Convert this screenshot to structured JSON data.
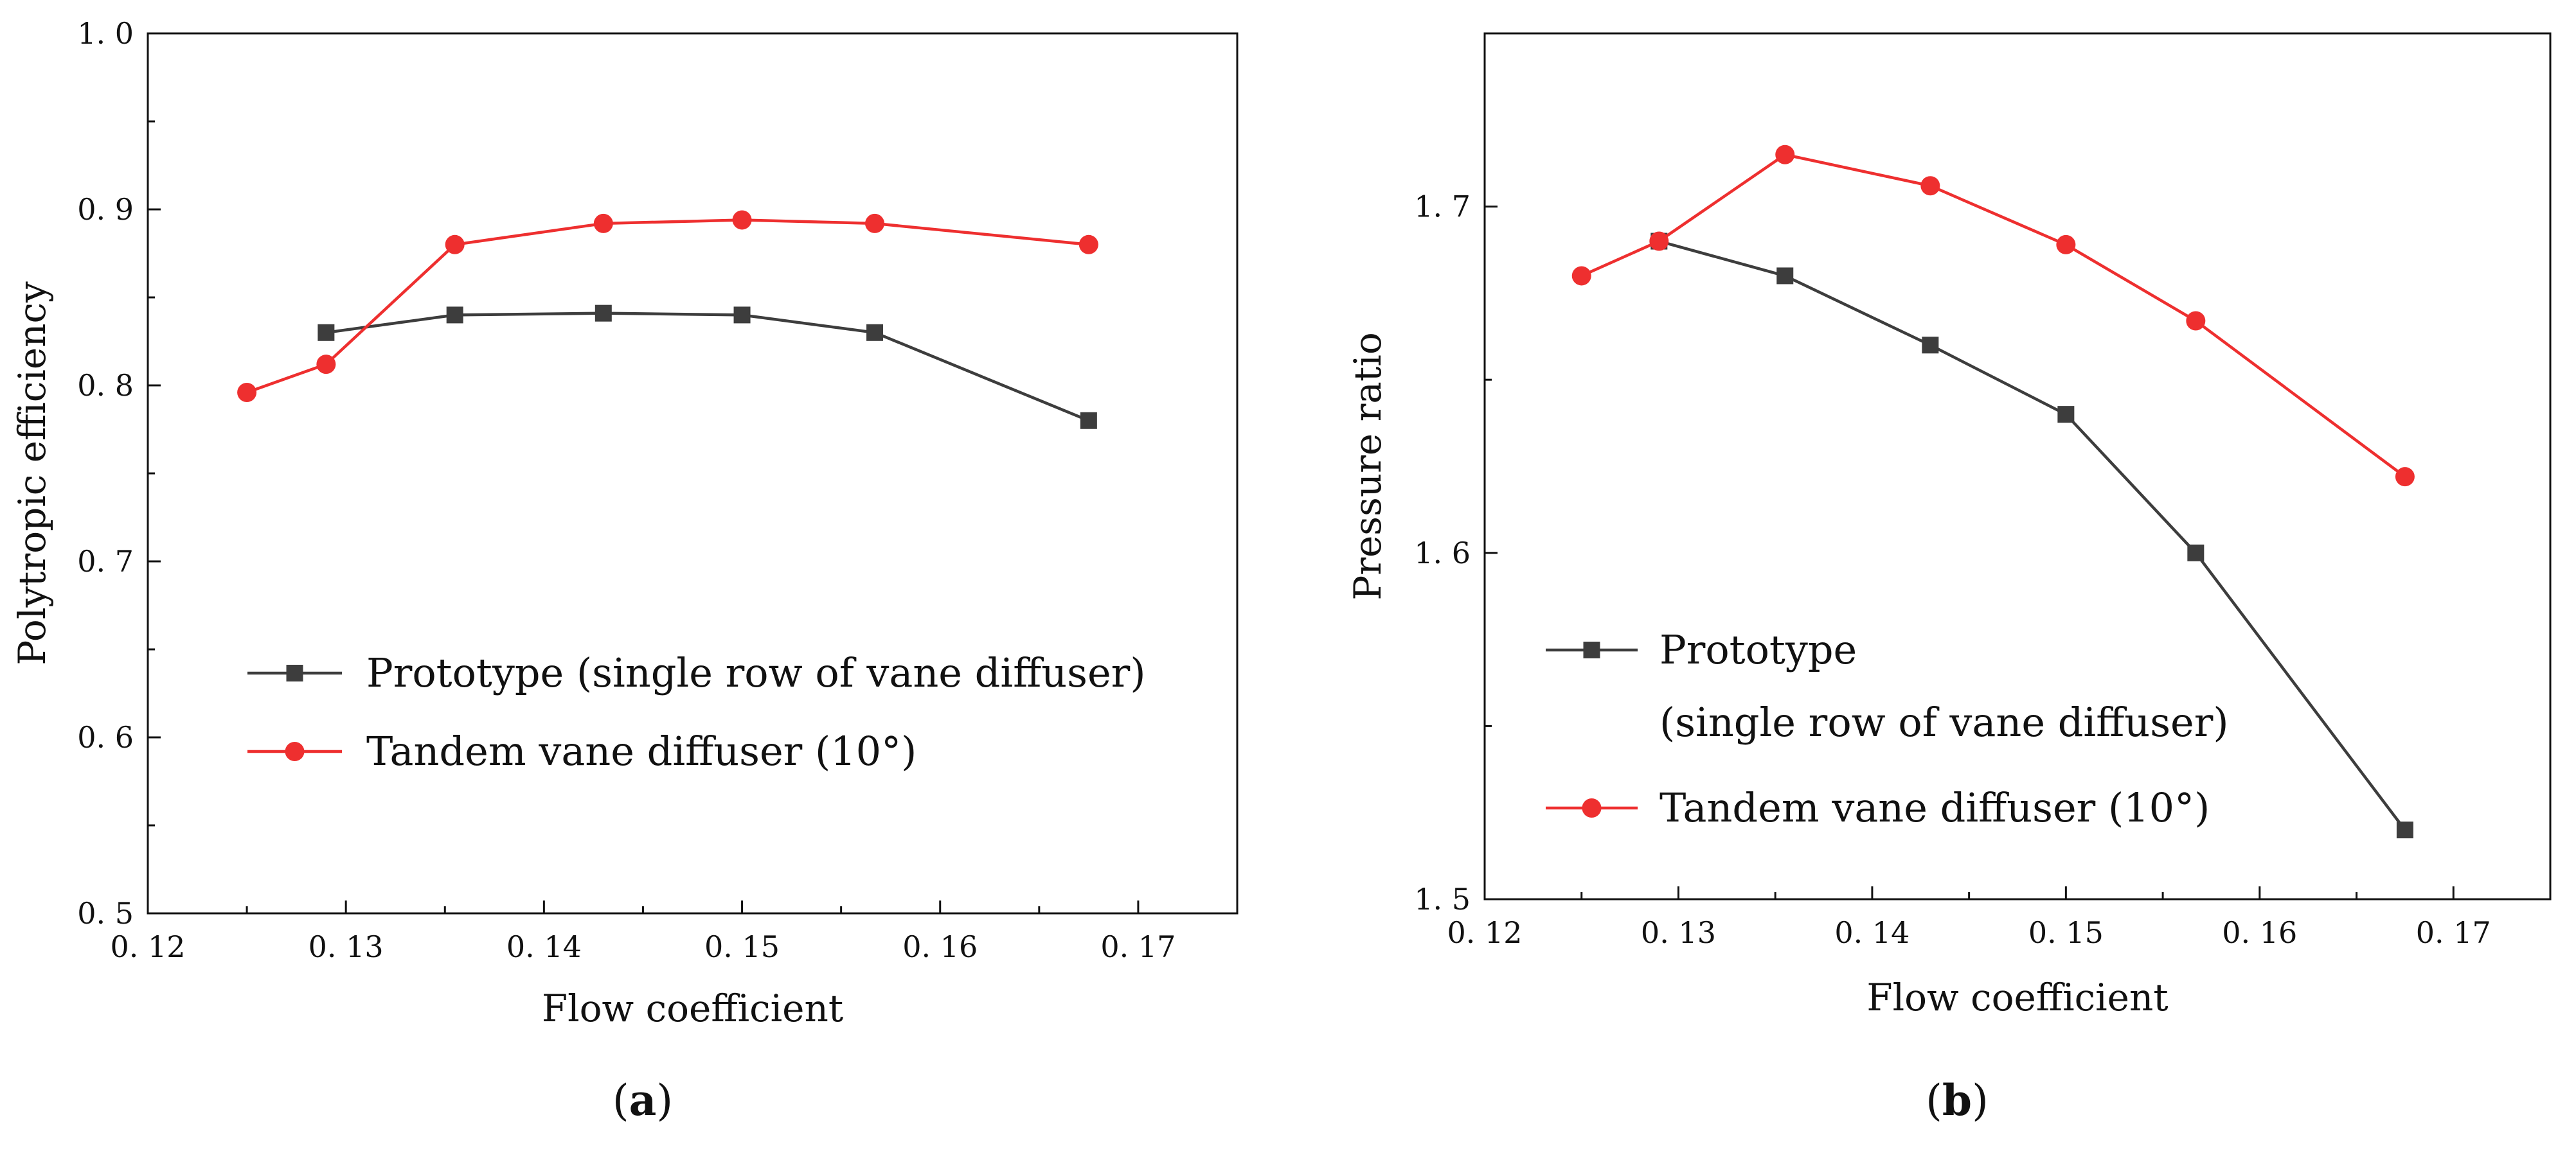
{
  "figure": {
    "panel_labels": [
      {
        "open": "(",
        "letter": "a",
        "close": ")"
      },
      {
        "open": "(",
        "letter": "b",
        "close": ")"
      }
    ]
  },
  "colors": {
    "series_prototype": "#3d3d3d",
    "series_tandem": "#ee2f2f",
    "axis": "#111111"
  },
  "chart_data": [
    {
      "type": "line",
      "panel": "a",
      "title": "",
      "xlabel": "Flow coefficient",
      "ylabel": "Polytropic efficiency",
      "xlim": [
        0.12,
        0.175
      ],
      "ylim": [
        0.5,
        1.0
      ],
      "xticks": [
        0.12,
        0.13,
        0.14,
        0.15,
        0.16,
        0.17
      ],
      "xtick_labels": [
        "0. 12",
        "0. 13",
        "0. 14",
        "0. 15",
        "0. 16",
        "0. 17"
      ],
      "yticks": [
        0.5,
        0.6,
        0.7,
        0.8,
        0.9,
        1.0
      ],
      "ytick_labels": [
        "0. 5",
        "0. 6",
        "0. 7",
        "0. 8",
        "0. 9",
        "1. 0"
      ],
      "legend": {
        "placement": "center-left",
        "lines": [
          [
            "Prototype (single row of vane diffuser)"
          ],
          [
            "Tandem vane diffuser (10°)"
          ]
        ]
      },
      "series": [
        {
          "name": "Prototype (single row of vane diffuser)",
          "marker": "square",
          "x": [
            0.129,
            0.1355,
            0.143,
            0.15,
            0.1567,
            0.1675
          ],
          "y": [
            0.83,
            0.84,
            0.841,
            0.84,
            0.83,
            0.78
          ]
        },
        {
          "name": "Tandem vane diffuser (10°)",
          "marker": "circle",
          "x": [
            0.125,
            0.129,
            0.1355,
            0.143,
            0.15,
            0.1567,
            0.1675
          ],
          "y": [
            0.796,
            0.812,
            0.88,
            0.892,
            0.894,
            0.892,
            0.88
          ]
        }
      ]
    },
    {
      "type": "line",
      "panel": "b",
      "title": "",
      "xlabel": "Flow coefficient",
      "ylabel": "Pressure ratio",
      "xlim": [
        0.12,
        0.175
      ],
      "ylim": [
        1.5,
        1.75
      ],
      "xticks": [
        0.12,
        0.13,
        0.14,
        0.15,
        0.16,
        0.17
      ],
      "xtick_labels": [
        "0. 12",
        "0. 13",
        "0. 14",
        "0. 15",
        "0. 16",
        "0. 17"
      ],
      "yticks": [
        1.5,
        1.6,
        1.7
      ],
      "ytick_labels": [
        "1. 5",
        "1. 6",
        "1. 7"
      ],
      "legend": {
        "placement": "center-left",
        "lines": [
          [
            "Prototype",
            "(single row of vane diffuser)"
          ],
          [
            "Tandem vane diffuser (10°)"
          ]
        ]
      },
      "series": [
        {
          "name": "Prototype (single row of vane diffuser)",
          "marker": "square",
          "x": [
            0.129,
            0.1355,
            0.143,
            0.15,
            0.1567,
            0.1675
          ],
          "y": [
            1.69,
            1.68,
            1.66,
            1.64,
            1.6,
            1.52
          ]
        },
        {
          "name": "Tandem vane diffuser (10°)",
          "marker": "circle",
          "x": [
            0.125,
            0.129,
            0.1355,
            0.143,
            0.15,
            0.1567,
            0.1675
          ],
          "y": [
            1.68,
            1.69,
            1.715,
            1.706,
            1.689,
            1.667,
            1.622
          ]
        }
      ]
    }
  ]
}
